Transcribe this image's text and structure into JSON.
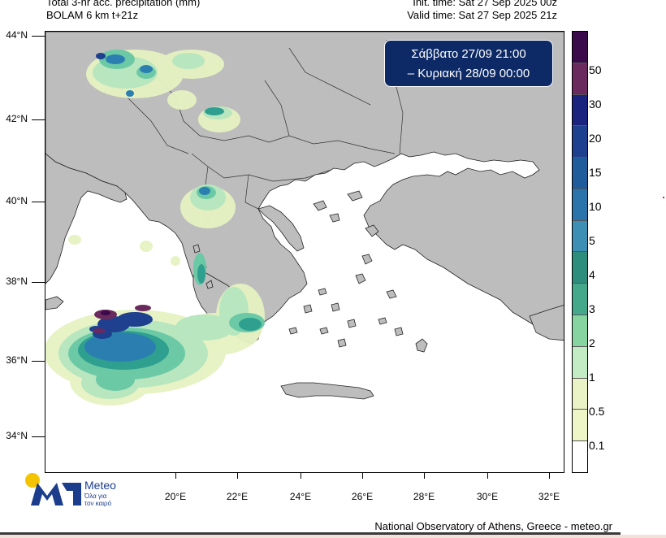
{
  "header": {
    "title_line1": "Total 3-hr acc. precipitation (mm)",
    "title_line2": "BOLAM 6 km t+21z",
    "init_time": "Init. time: Sat 27 Sep 2025 00z",
    "valid_time": "Valid time: Sat 27 Sep 2025 21z"
  },
  "time_box": {
    "line1": "Σάββατο 27/09 21:00",
    "line2": "– Κυριακή 28/09 00:00"
  },
  "axes": {
    "lat_labels": [
      "44°N",
      "42°N",
      "40°N",
      "38°N",
      "36°N",
      "34°N"
    ],
    "lon_labels": [
      "20°E",
      "22°E",
      "24°E",
      "26°E",
      "28°E",
      "30°E",
      "32°E"
    ]
  },
  "colorbar": {
    "labels": [
      "50",
      "30",
      "20",
      "15",
      "10",
      "5",
      "4",
      "3",
      "2",
      "1",
      "0.5",
      "0.1"
    ],
    "colors": [
      "#3a0a4a",
      "#6b2a5e",
      "#1a237e",
      "#1f3f8f",
      "#1f5c9c",
      "#2a73ab",
      "#3d8fb6",
      "#2e8e7e",
      "#43a98a",
      "#86d5a0",
      "#c4ecc4",
      "#e9f3c6",
      "#eef6c8",
      "#ffffff"
    ]
  },
  "map": {
    "land_color": "#bdbdbd",
    "sea_color": "#ffffff",
    "precip_colors": {
      "light": "#e6f2c2",
      "light2": "#b8e6bf",
      "mid": "#6cc9a6",
      "teal": "#2f9f8f",
      "blue": "#2a7fb0",
      "dark_blue": "#1f3f8f",
      "maroon": "#6b2a5e",
      "dark_purple": "#3a0a4a"
    }
  },
  "logo": {
    "name": "Meteo",
    "tagline_line1": "Όλα για",
    "tagline_line2": "τον καιρό"
  },
  "footer": {
    "credit": "National Observatory of Athens, Greece - meteo.gr"
  }
}
